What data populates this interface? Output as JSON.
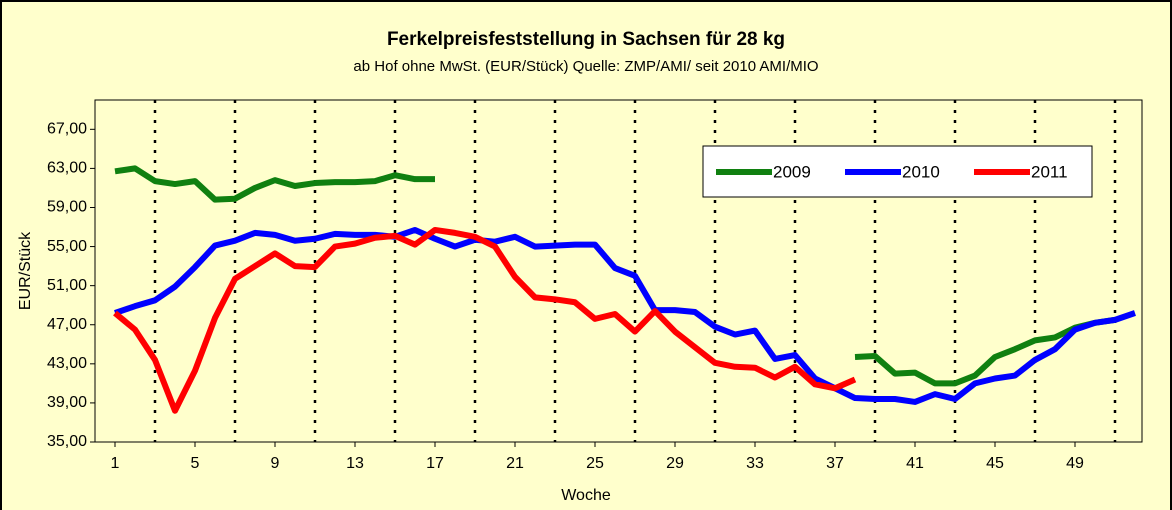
{
  "chart_data": {
    "type": "line",
    "title": "Ferkelpreisfeststellung in Sachsen für 28 kg",
    "subtitle": "ab Hof ohne MwSt. (EUR/Stück) Quelle: ZMP/AMI/ seit 2010 AMI/MIO",
    "x_label": "Woche",
    "y_label": "EUR/Stück",
    "x": [
      1,
      2,
      3,
      4,
      5,
      6,
      7,
      8,
      9,
      10,
      11,
      12,
      13,
      14,
      15,
      16,
      17,
      18,
      19,
      20,
      21,
      22,
      23,
      24,
      25,
      26,
      27,
      28,
      29,
      30,
      31,
      32,
      33,
      34,
      35,
      36,
      37,
      38,
      39,
      40,
      41,
      42,
      43,
      44,
      45,
      46,
      47,
      48,
      49,
      50,
      51,
      52
    ],
    "series": [
      {
        "name": "2009",
        "color": "#108010",
        "values": [
          62.7,
          63.0,
          61.7,
          61.4,
          61.7,
          59.8,
          59.9,
          61.0,
          61.8,
          61.2,
          61.5,
          61.6,
          61.6,
          61.7,
          62.3,
          61.9,
          61.9,
          null,
          null,
          null,
          null,
          null,
          null,
          null,
          null,
          null,
          null,
          null,
          null,
          null,
          null,
          null,
          null,
          null,
          null,
          null,
          null,
          43.7,
          43.8,
          42.0,
          42.1,
          41.0,
          41.0,
          41.8,
          43.7,
          44.5,
          45.4,
          45.7,
          46.7,
          47.2,
          47.5,
          null
        ]
      },
      {
        "name": "2010",
        "color": "#0000ff",
        "values": [
          48.2,
          48.9,
          49.5,
          50.9,
          52.9,
          55.1,
          55.6,
          56.4,
          56.2,
          55.6,
          55.8,
          56.3,
          56.2,
          56.2,
          56.0,
          56.7,
          55.8,
          55.0,
          55.7,
          55.5,
          56.0,
          55.0,
          55.1,
          55.2,
          55.2,
          52.8,
          52.0,
          48.5,
          48.5,
          48.3,
          46.8,
          46.0,
          46.4,
          43.5,
          43.9,
          41.5,
          40.5,
          39.5,
          39.4,
          39.4,
          39.1,
          39.9,
          39.4,
          41.0,
          41.5,
          41.8,
          43.4,
          44.5,
          46.5,
          47.2,
          47.5,
          48.2
        ]
      },
      {
        "name": "2011",
        "color": "#ff0000",
        "values": [
          48.2,
          46.5,
          43.4,
          38.2,
          42.3,
          47.7,
          51.7,
          53.0,
          54.3,
          53.0,
          52.9,
          55.0,
          55.3,
          55.9,
          56.1,
          55.2,
          56.7,
          56.4,
          56.0,
          55.0,
          51.9,
          49.8,
          49.6,
          49.3,
          47.6,
          48.1,
          46.3,
          48.4,
          46.3,
          44.7,
          43.1,
          42.7,
          42.6,
          41.6,
          42.7,
          40.9,
          40.5,
          41.4,
          null,
          null,
          null,
          null,
          null,
          null,
          null,
          null,
          null,
          null,
          null,
          null,
          null,
          null
        ]
      }
    ],
    "xlim": [
      1,
      52
    ],
    "xticks": [
      1,
      5,
      9,
      13,
      17,
      21,
      25,
      29,
      33,
      37,
      41,
      45,
      49
    ],
    "ylim": [
      35,
      70
    ],
    "yticks": [
      {
        "value": 35,
        "label": "35,00"
      },
      {
        "value": 39,
        "label": "39,00"
      },
      {
        "value": 43,
        "label": "43,00"
      },
      {
        "value": 47,
        "label": "47,00"
      },
      {
        "value": 51,
        "label": "51,00"
      },
      {
        "value": 55,
        "label": "55,00"
      },
      {
        "value": 59,
        "label": "59,00"
      },
      {
        "value": 63,
        "label": "63,00"
      },
      {
        "value": 67,
        "label": "67,00"
      }
    ],
    "grid": "x",
    "legend": "upper right"
  }
}
